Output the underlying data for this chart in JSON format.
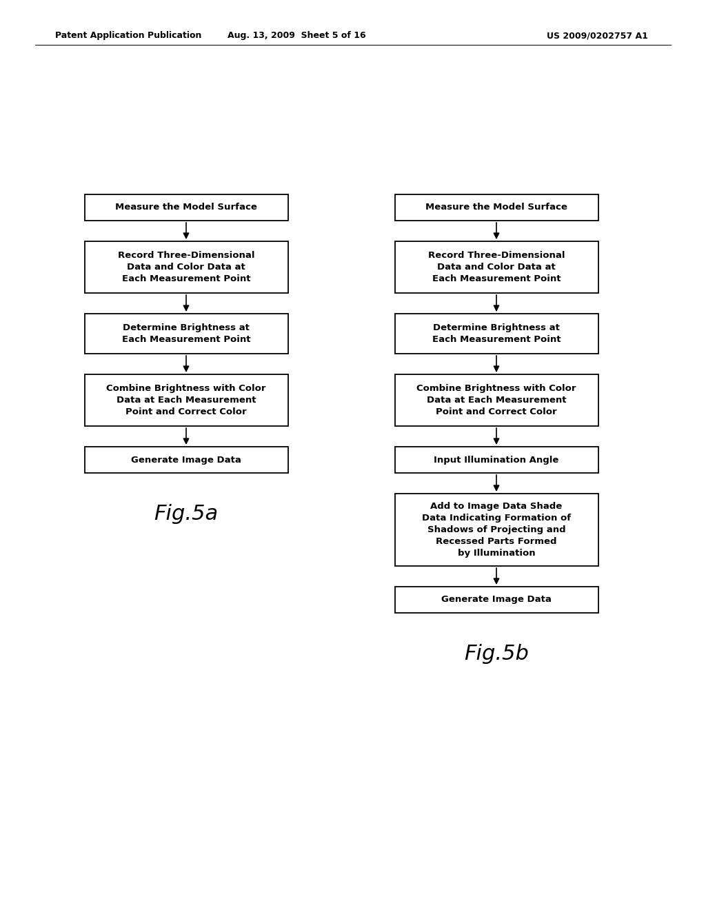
{
  "background_color": "#ffffff",
  "header_text": "Patent Application Publication",
  "header_date": "Aug. 13, 2009  Sheet 5 of 16",
  "header_patent": "US 2009/0202757 A1",
  "fig_a_label": "Fig.5a",
  "fig_b_label": "Fig.5b",
  "flowchart_a": [
    "Measure the Model Surface",
    "Record Three-Dimensional\nData and Color Data at\nEach Measurement Point",
    "Determine Brightness at\nEach Measurement Point",
    "Combine Brightness with Color\nData at Each Measurement\nPoint and Correct Color",
    "Generate Image Data"
  ],
  "flowchart_b": [
    "Measure the Model Surface",
    "Record Three-Dimensional\nData and Color Data at\nEach Measurement Point",
    "Determine Brightness at\nEach Measurement Point",
    "Combine Brightness with Color\nData at Each Measurement\nPoint and Correct Color",
    "Input Illumination Angle",
    "Add to Image Data Shade\nData Indicating Formation of\nShadows of Projecting and\nRecessed Parts Formed\nby Illumination",
    "Generate Image Data"
  ]
}
